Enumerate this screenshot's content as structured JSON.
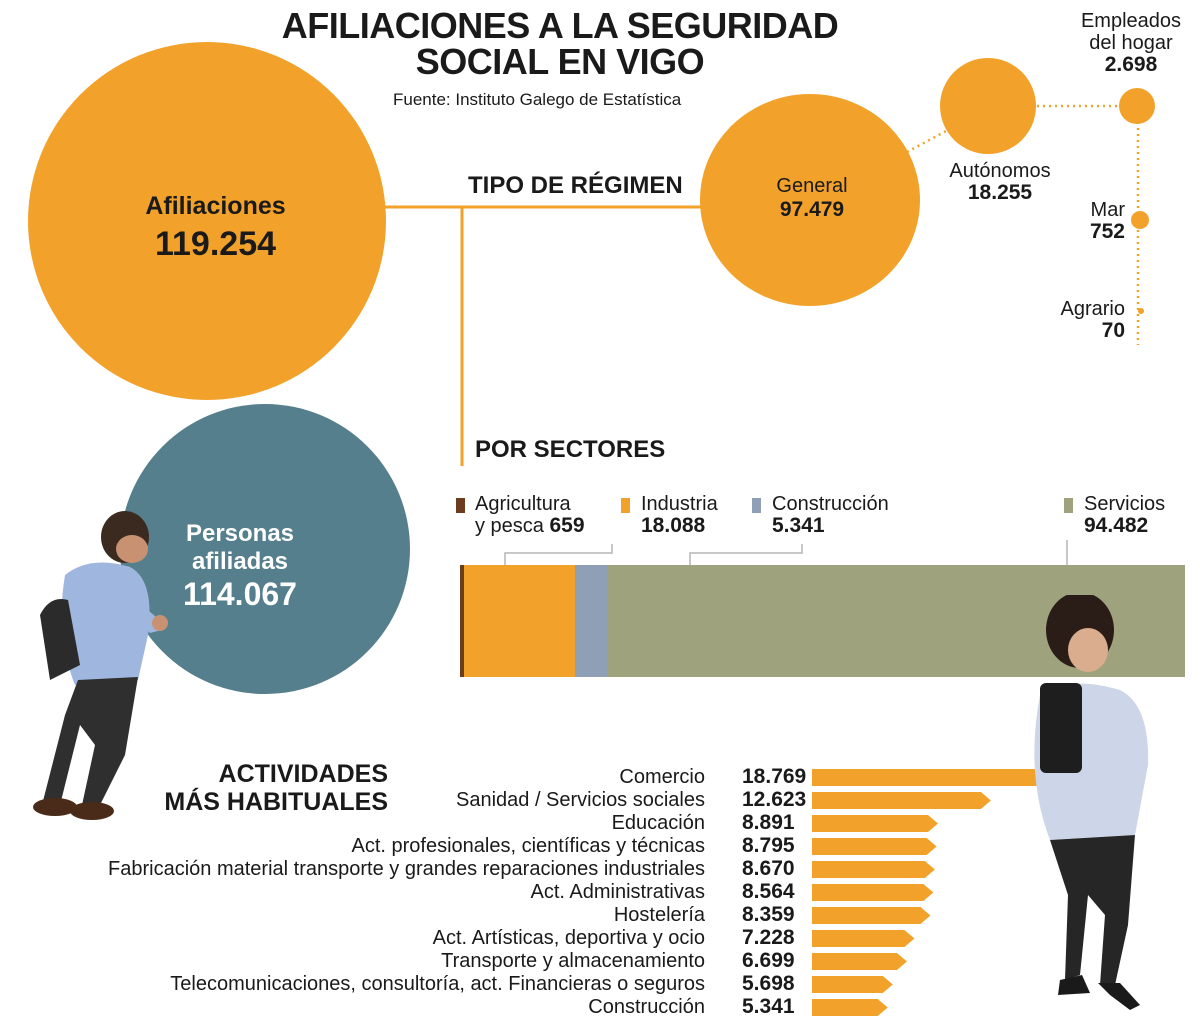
{
  "title_line1": "AFILIACIONES A LA SEGURIDAD",
  "title_line2": "SOCIAL EN VIGO",
  "source": "Fuente: Instituto Galego de Estatística",
  "colors": {
    "orange": "#f2a22a",
    "teal": "#557f8c",
    "brown": "#6b3d1f",
    "slate": "#8f9fb6",
    "olive": "#9ea37e"
  },
  "afiliaciones": {
    "label": "Afiliaciones",
    "value": "119.254"
  },
  "personas": {
    "label1": "Personas",
    "label2": "afiliadas",
    "value": "114.067"
  },
  "regimen": {
    "title": "TIPO DE RÉGIMEN",
    "general": {
      "label": "General",
      "value": "97.479"
    },
    "autonomos": {
      "label": "Autónomos",
      "value": "18.255"
    },
    "hogar": {
      "label1": "Empleados",
      "label2": "del hogar",
      "value": "2.698"
    },
    "mar": {
      "label": "Mar",
      "value": "752"
    },
    "agrario": {
      "label": "Agrario",
      "value": "70"
    }
  },
  "sectores": {
    "title": "POR SECTORES",
    "agricultura": {
      "label1": "Agricultura",
      "label2": "y pesca",
      "value": "659"
    },
    "industria": {
      "label": "Industria",
      "value": "18.088"
    },
    "construccion": {
      "label": "Construcción",
      "value": "5.341"
    },
    "servicios": {
      "label": "Servicios",
      "value": "94.482"
    }
  },
  "actividades": {
    "title1": "ACTIVIDADES",
    "title2": "MÁS HABITUALES"
  },
  "chart_data": [
    {
      "type": "bar",
      "orientation": "horizontal-stacked",
      "categories": [
        "Agricultura y pesca",
        "Industria",
        "Construcción",
        "Servicios"
      ],
      "values": [
        659,
        18088,
        5341,
        94482
      ]
    },
    {
      "type": "bar",
      "orientation": "horizontal",
      "categories": [
        "Comercio",
        "Sanidad / Servicios sociales",
        "Educación",
        "Act. profesionales, científicas y técnicas",
        "Fabricación material transporte y grandes reparaciones industriales",
        "Act. Administrativas",
        "Hostelería",
        "Act. Artísticas, deportiva y ocio",
        "Transporte y almacenamiento",
        "Telecomunicaciones, consultoría, act. Financieras o seguros",
        "Construcción"
      ],
      "values": [
        18769,
        12623,
        8891,
        8795,
        8670,
        8564,
        8359,
        7228,
        6699,
        5698,
        5341
      ],
      "value_labels": [
        "18.769",
        "12.623",
        "8.891",
        "8.795",
        "8.670",
        "8.564",
        "8.359",
        "7.228",
        "6.699",
        "5.698",
        "5.341"
      ]
    }
  ]
}
